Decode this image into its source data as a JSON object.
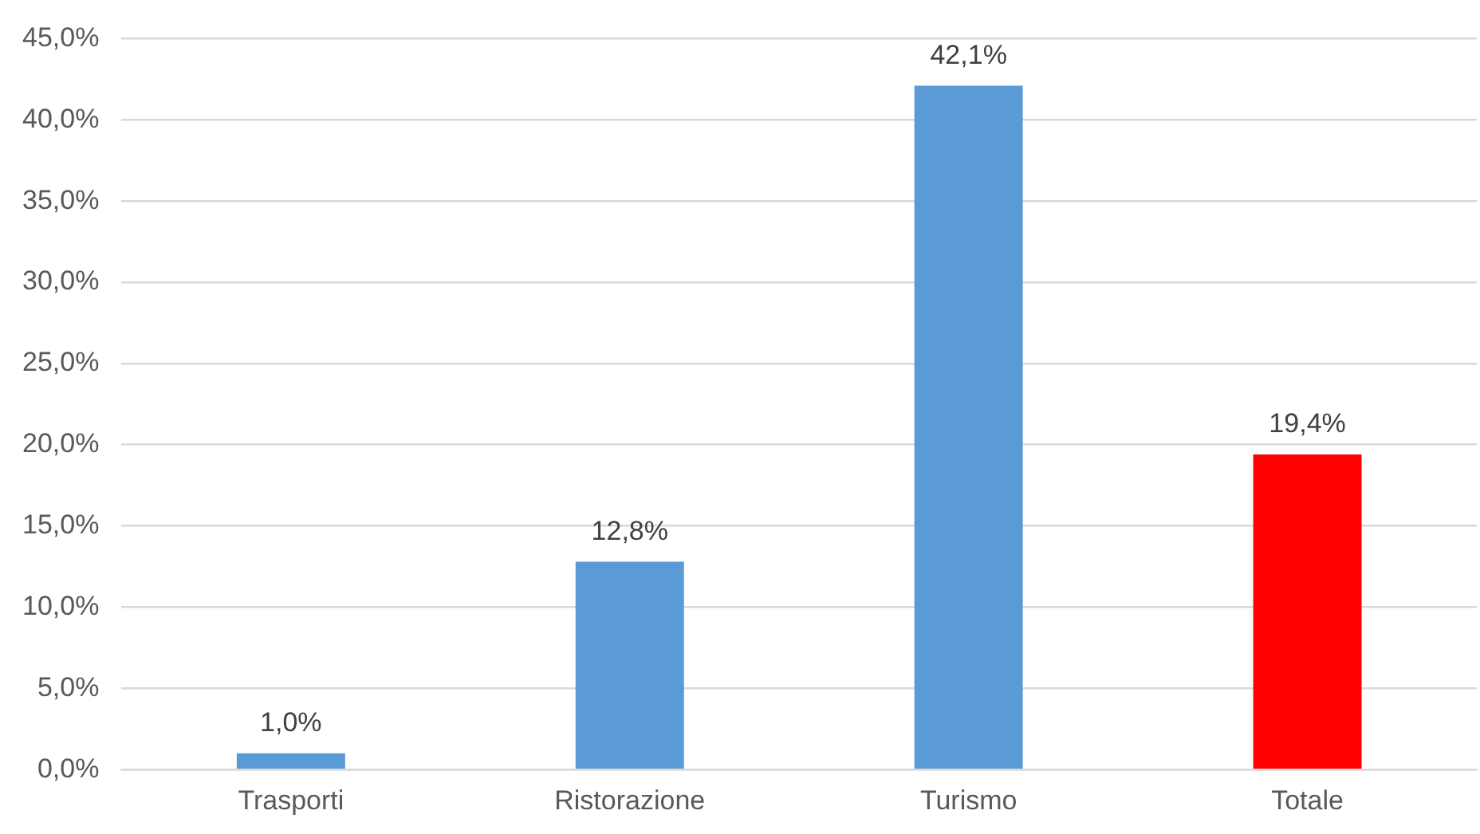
{
  "chart_data": {
    "type": "bar",
    "categories": [
      "Trasporti",
      "Ristorazione",
      "Turismo",
      "Totale"
    ],
    "values": [
      1.0,
      12.8,
      42.1,
      19.4
    ],
    "colors": [
      "#5b9bd5",
      "#5b9bd5",
      "#5b9bd5",
      "#ff0000"
    ],
    "value_labels": [
      "1,0%",
      "12,8%",
      "42,1%",
      "19,4%"
    ],
    "ylim": [
      0,
      45
    ],
    "yticks": [
      {
        "value": 0,
        "label": "0,0%"
      },
      {
        "value": 5,
        "label": "5,0%"
      },
      {
        "value": 10,
        "label": "10,0%"
      },
      {
        "value": 15,
        "label": "15,0%"
      },
      {
        "value": 20,
        "label": "20,0%"
      },
      {
        "value": 25,
        "label": "25,0%"
      },
      {
        "value": 30,
        "label": "30,0%"
      },
      {
        "value": 35,
        "label": "35,0%"
      },
      {
        "value": 40,
        "label": "40,0%"
      },
      {
        "value": 45,
        "label": "45,0%"
      }
    ],
    "grid": "y",
    "legend": false
  }
}
